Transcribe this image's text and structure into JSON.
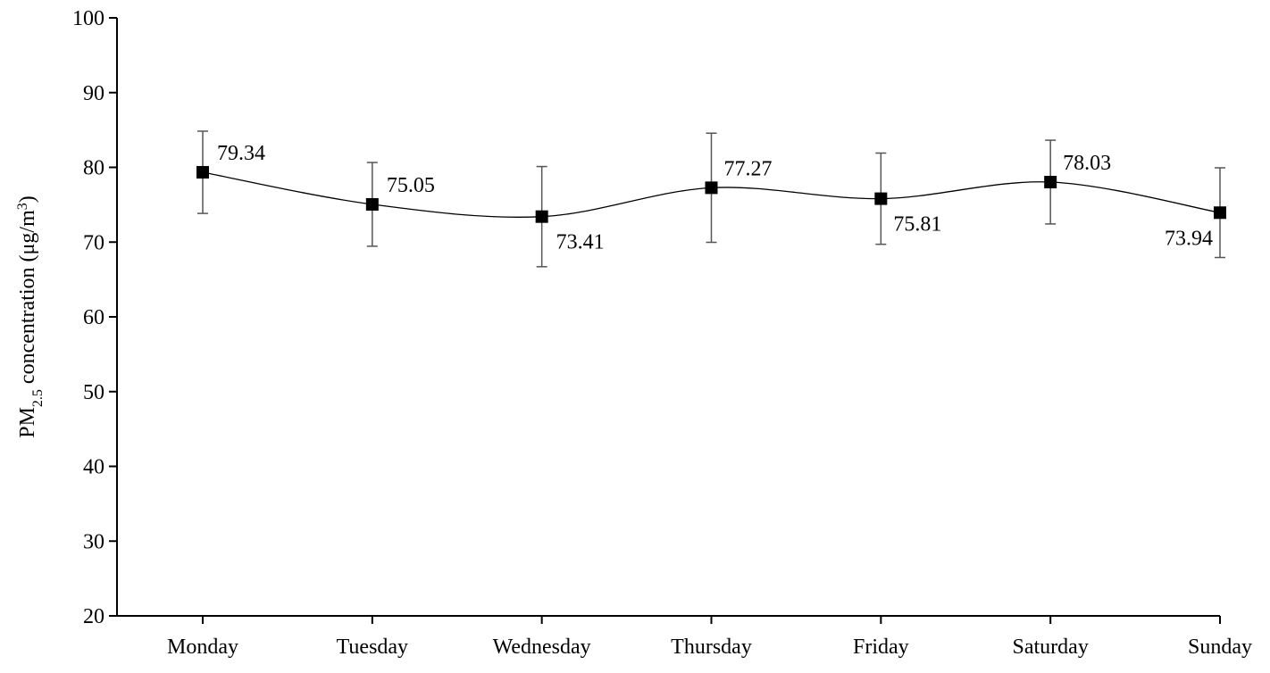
{
  "chart_data": {
    "type": "line",
    "ylabel": [
      "PM",
      "2.5",
      " concentration (μg/m",
      "3",
      ")"
    ],
    "categories": [
      "Monday",
      "Tuesday",
      "Wednesday",
      "Thursday",
      "Friday",
      "Saturday",
      "Sunday"
    ],
    "series": [
      {
        "color": "#000000",
        "values": [
          79.34,
          75.05,
          73.41,
          77.27,
          75.81,
          78.03,
          73.94
        ],
        "errors": [
          5.5,
          5.6,
          6.7,
          7.3,
          6.1,
          5.6,
          6.0
        ]
      }
    ],
    "ylim": [
      20,
      100
    ],
    "yticks": [
      20,
      30,
      40,
      50,
      60,
      70,
      80,
      90,
      100
    ],
    "error_color": "#555555"
  }
}
